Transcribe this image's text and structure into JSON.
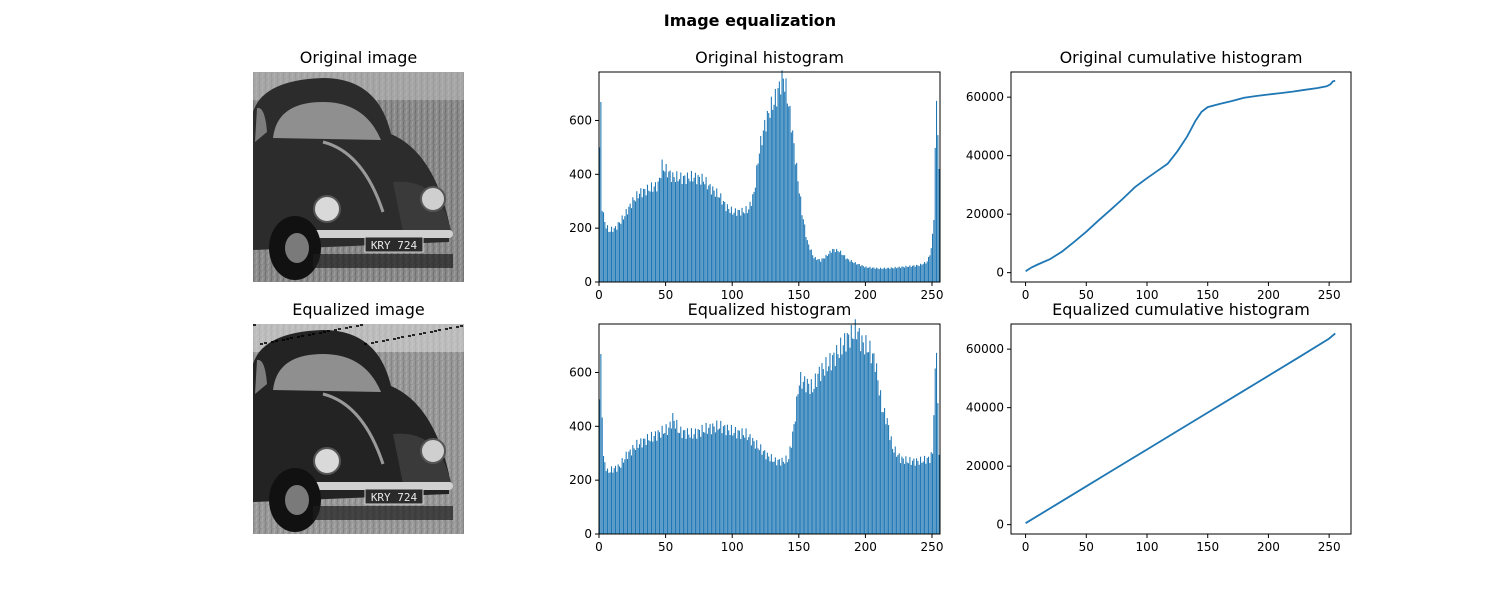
{
  "figure": {
    "title": "Image equalization"
  },
  "images": [
    {
      "title": "Original image",
      "subject": "vintage car photo, grayscale",
      "plate_text": "KRY 724",
      "tone": "original"
    },
    {
      "title": "Equalized image",
      "subject": "vintage car photo, grayscale, contrast equalized",
      "plate_text": "KRY 724",
      "tone": "equalized"
    }
  ],
  "chart_data": [
    {
      "id": "orig-hist",
      "type": "bar",
      "title": "Original histogram",
      "xlim": [
        0,
        256
      ],
      "ylim": [
        0,
        780
      ],
      "xticks": [
        0,
        50,
        100,
        150,
        200,
        250
      ],
      "yticks": [
        0,
        200,
        400,
        600
      ],
      "color": "#1f77b4",
      "profile": [
        [
          0,
          500
        ],
        [
          1,
          640
        ],
        [
          2,
          280
        ],
        [
          4,
          220
        ],
        [
          7,
          190
        ],
        [
          12,
          200
        ],
        [
          18,
          240
        ],
        [
          25,
          300
        ],
        [
          30,
          330
        ],
        [
          37,
          345
        ],
        [
          44,
          360
        ],
        [
          47,
          430
        ],
        [
          55,
          390
        ],
        [
          63,
          385
        ],
        [
          70,
          390
        ],
        [
          78,
          380
        ],
        [
          83,
          350
        ],
        [
          90,
          320
        ],
        [
          95,
          280
        ],
        [
          100,
          260
        ],
        [
          108,
          262
        ],
        [
          112,
          270
        ],
        [
          116,
          330
        ],
        [
          120,
          490
        ],
        [
          124,
          580
        ],
        [
          128,
          640
        ],
        [
          133,
          690
        ],
        [
          136,
          740
        ],
        [
          138,
          760
        ],
        [
          141,
          690
        ],
        [
          144,
          590
        ],
        [
          148,
          420
        ],
        [
          152,
          260
        ],
        [
          156,
          150
        ],
        [
          161,
          90
        ],
        [
          166,
          80
        ],
        [
          170,
          95
        ],
        [
          175,
          120
        ],
        [
          180,
          115
        ],
        [
          186,
          85
        ],
        [
          192,
          70
        ],
        [
          200,
          55
        ],
        [
          210,
          50
        ],
        [
          220,
          52
        ],
        [
          232,
          58
        ],
        [
          240,
          62
        ],
        [
          246,
          75
        ],
        [
          249,
          120
        ],
        [
          251,
          240
        ],
        [
          252,
          470
        ],
        [
          253,
          700
        ],
        [
          255,
          400
        ]
      ]
    },
    {
      "id": "orig-cdf",
      "type": "line",
      "title": "Original cumulative histogram",
      "xlim": [
        -12,
        268
      ],
      "ylim": [
        -3200,
        68600
      ],
      "xticks": [
        0,
        50,
        100,
        150,
        200,
        250
      ],
      "yticks": [
        0,
        20000,
        40000,
        60000
      ],
      "color": "#1f77b4",
      "points": [
        [
          0,
          500
        ],
        [
          5,
          1800
        ],
        [
          10,
          2800
        ],
        [
          20,
          4600
        ],
        [
          30,
          7200
        ],
        [
          40,
          10500
        ],
        [
          50,
          14000
        ],
        [
          60,
          17800
        ],
        [
          70,
          21500
        ],
        [
          80,
          25200
        ],
        [
          90,
          29200
        ],
        [
          100,
          32300
        ],
        [
          110,
          35200
        ],
        [
          117,
          37200
        ],
        [
          125,
          41500
        ],
        [
          133,
          46500
        ],
        [
          140,
          52000
        ],
        [
          145,
          55000
        ],
        [
          150,
          56600
        ],
        [
          160,
          57700
        ],
        [
          170,
          58700
        ],
        [
          180,
          59800
        ],
        [
          190,
          60400
        ],
        [
          200,
          60900
        ],
        [
          210,
          61400
        ],
        [
          220,
          61900
        ],
        [
          230,
          62500
        ],
        [
          240,
          63100
        ],
        [
          248,
          63700
        ],
        [
          251,
          64400
        ],
        [
          253,
          65400
        ],
        [
          255,
          65600
        ]
      ]
    },
    {
      "id": "eq-hist",
      "type": "bar",
      "title": "Equalized histogram",
      "xlim": [
        0,
        256
      ],
      "ylim": [
        0,
        780
      ],
      "xticks": [
        0,
        50,
        100,
        150,
        200,
        250
      ],
      "yticks": [
        0,
        200,
        400,
        600
      ],
      "color": "#1f77b4",
      "profile": [
        [
          0,
          500
        ],
        [
          1,
          640
        ],
        [
          3,
          280
        ],
        [
          6,
          230
        ],
        [
          10,
          240
        ],
        [
          15,
          250
        ],
        [
          20,
          290
        ],
        [
          28,
          330
        ],
        [
          35,
          350
        ],
        [
          40,
          360
        ],
        [
          47,
          380
        ],
        [
          52,
          390
        ],
        [
          55,
          430
        ],
        [
          60,
          380
        ],
        [
          70,
          370
        ],
        [
          80,
          390
        ],
        [
          90,
          400
        ],
        [
          100,
          380
        ],
        [
          110,
          370
        ],
        [
          116,
          340
        ],
        [
          120,
          320
        ],
        [
          126,
          290
        ],
        [
          132,
          270
        ],
        [
          138,
          270
        ],
        [
          142,
          280
        ],
        [
          146,
          400
        ],
        [
          150,
          570
        ],
        [
          155,
          560
        ],
        [
          160,
          540
        ],
        [
          165,
          600
        ],
        [
          170,
          620
        ],
        [
          175,
          650
        ],
        [
          180,
          680
        ],
        [
          185,
          720
        ],
        [
          190,
          740
        ],
        [
          193,
          760
        ],
        [
          197,
          710
        ],
        [
          202,
          690
        ],
        [
          207,
          640
        ],
        [
          212,
          470
        ],
        [
          216,
          420
        ],
        [
          220,
          320
        ],
        [
          226,
          280
        ],
        [
          232,
          270
        ],
        [
          240,
          270
        ],
        [
          248,
          280
        ],
        [
          250,
          300
        ],
        [
          251,
          460
        ],
        [
          253,
          700
        ],
        [
          255,
          280
        ]
      ]
    },
    {
      "id": "eq-cdf",
      "type": "line",
      "title": "Equalized cumulative histogram",
      "xlim": [
        -12,
        268
      ],
      "ylim": [
        -3200,
        68600
      ],
      "xticks": [
        0,
        50,
        100,
        150,
        200,
        250
      ],
      "yticks": [
        0,
        20000,
        40000,
        60000
      ],
      "color": "#1f77b4",
      "points": [
        [
          0,
          500
        ],
        [
          25,
          6800
        ],
        [
          50,
          13100
        ],
        [
          75,
          19400
        ],
        [
          100,
          25700
        ],
        [
          125,
          32000
        ],
        [
          150,
          38300
        ],
        [
          175,
          44600
        ],
        [
          200,
          50900
        ],
        [
          225,
          57200
        ],
        [
          250,
          63600
        ],
        [
          255,
          65400
        ]
      ]
    }
  ]
}
